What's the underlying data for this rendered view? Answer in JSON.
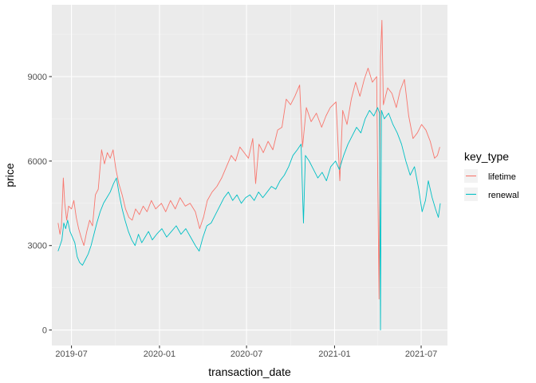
{
  "chart_data": {
    "type": "line",
    "xlabel": "transaction_date",
    "ylabel": "price",
    "x_ticks": [
      "2019-07",
      "2020-01",
      "2020-07",
      "2021-01",
      "2021-07"
    ],
    "y_ticks": [
      "0",
      "3000",
      "6000",
      "9000"
    ],
    "xlim": [
      "2019-05-21",
      "2021-08-25"
    ],
    "ylim": [
      -550,
      11550
    ],
    "grid": true,
    "legend": {
      "title": "key_type",
      "position": "right",
      "entries": [
        "lifetime",
        "renewal"
      ]
    },
    "colors": {
      "lifetime": "#F8766D",
      "renewal": "#00BFC4",
      "panel": "#EBEBEB",
      "grid_major": "#FFFFFF",
      "grid_minor": "#F5F5F5"
    },
    "series": [
      {
        "name": "lifetime",
        "points": [
          [
            "2019-06-03",
            3800
          ],
          [
            "2019-06-07",
            3400
          ],
          [
            "2019-06-10",
            3700
          ],
          [
            "2019-06-14",
            5400
          ],
          [
            "2019-06-17",
            4500
          ],
          [
            "2019-06-21",
            3900
          ],
          [
            "2019-06-25",
            4400
          ],
          [
            "2019-07-01",
            4300
          ],
          [
            "2019-07-06",
            4600
          ],
          [
            "2019-07-11",
            4000
          ],
          [
            "2019-07-16",
            3600
          ],
          [
            "2019-07-21",
            3300
          ],
          [
            "2019-07-27",
            3000
          ],
          [
            "2019-08-02",
            3500
          ],
          [
            "2019-08-08",
            3900
          ],
          [
            "2019-08-14",
            3700
          ],
          [
            "2019-08-20",
            4800
          ],
          [
            "2019-08-26",
            5000
          ],
          [
            "2019-09-02",
            6400
          ],
          [
            "2019-09-08",
            5900
          ],
          [
            "2019-09-14",
            6300
          ],
          [
            "2019-09-20",
            6100
          ],
          [
            "2019-09-26",
            6400
          ],
          [
            "2019-10-02",
            5700
          ],
          [
            "2019-10-08",
            5200
          ],
          [
            "2019-10-15",
            4800
          ],
          [
            "2019-10-22",
            4300
          ],
          [
            "2019-10-29",
            4000
          ],
          [
            "2019-11-05",
            3900
          ],
          [
            "2019-11-12",
            4300
          ],
          [
            "2019-11-20",
            4100
          ],
          [
            "2019-11-28",
            4400
          ],
          [
            "2019-12-06",
            4200
          ],
          [
            "2019-12-15",
            4600
          ],
          [
            "2019-12-24",
            4300
          ],
          [
            "2020-01-05",
            4500
          ],
          [
            "2020-01-14",
            4200
          ],
          [
            "2020-01-24",
            4600
          ],
          [
            "2020-02-03",
            4300
          ],
          [
            "2020-02-13",
            4700
          ],
          [
            "2020-02-24",
            4400
          ],
          [
            "2020-03-05",
            4500
          ],
          [
            "2020-03-16",
            4200
          ],
          [
            "2020-03-25",
            3600
          ],
          [
            "2020-04-02",
            4000
          ],
          [
            "2020-04-10",
            4600
          ],
          [
            "2020-04-20",
            4900
          ],
          [
            "2020-04-30",
            5100
          ],
          [
            "2020-05-10",
            5400
          ],
          [
            "2020-05-20",
            5800
          ],
          [
            "2020-05-30",
            6200
          ],
          [
            "2020-06-08",
            6000
          ],
          [
            "2020-06-17",
            6500
          ],
          [
            "2020-06-26",
            6300
          ],
          [
            "2020-07-05",
            6100
          ],
          [
            "2020-07-14",
            6800
          ],
          [
            "2020-07-20",
            5200
          ],
          [
            "2020-07-27",
            6600
          ],
          [
            "2020-08-05",
            6300
          ],
          [
            "2020-08-15",
            6700
          ],
          [
            "2020-08-25",
            6400
          ],
          [
            "2020-09-04",
            7100
          ],
          [
            "2020-09-13",
            7200
          ],
          [
            "2020-09-22",
            8200
          ],
          [
            "2020-10-01",
            8000
          ],
          [
            "2020-10-10",
            8300
          ],
          [
            "2020-10-20",
            8700
          ],
          [
            "2020-10-26",
            6500
          ],
          [
            "2020-11-03",
            7900
          ],
          [
            "2020-11-13",
            7400
          ],
          [
            "2020-11-24",
            7700
          ],
          [
            "2020-12-05",
            7200
          ],
          [
            "2020-12-14",
            7600
          ],
          [
            "2020-12-23",
            7900
          ],
          [
            "2021-01-04",
            8100
          ],
          [
            "2021-01-12",
            5300
          ],
          [
            "2021-01-18",
            7800
          ],
          [
            "2021-01-27",
            7300
          ],
          [
            "2021-02-05",
            8200
          ],
          [
            "2021-02-14",
            8800
          ],
          [
            "2021-02-23",
            8300
          ],
          [
            "2021-03-04",
            8900
          ],
          [
            "2021-03-12",
            9300
          ],
          [
            "2021-03-21",
            8800
          ],
          [
            "2021-03-30",
            9000
          ],
          [
            "2021-04-04",
            1100
          ],
          [
            "2021-04-07",
            9700
          ],
          [
            "2021-04-10",
            11000
          ],
          [
            "2021-04-13",
            8000
          ],
          [
            "2021-04-22",
            8600
          ],
          [
            "2021-05-01",
            8400
          ],
          [
            "2021-05-10",
            7900
          ],
          [
            "2021-05-18",
            8500
          ],
          [
            "2021-05-27",
            8900
          ],
          [
            "2021-06-05",
            7600
          ],
          [
            "2021-06-14",
            6800
          ],
          [
            "2021-06-23",
            7000
          ],
          [
            "2021-07-02",
            7300
          ],
          [
            "2021-07-11",
            7100
          ],
          [
            "2021-07-20",
            6700
          ],
          [
            "2021-07-29",
            6100
          ],
          [
            "2021-08-04",
            6200
          ],
          [
            "2021-08-09",
            6500
          ]
        ]
      },
      {
        "name": "renewal",
        "points": [
          [
            "2019-06-03",
            2800
          ],
          [
            "2019-06-07",
            3000
          ],
          [
            "2019-06-11",
            3200
          ],
          [
            "2019-06-15",
            3800
          ],
          [
            "2019-06-19",
            3600
          ],
          [
            "2019-06-23",
            3900
          ],
          [
            "2019-06-28",
            3500
          ],
          [
            "2019-07-03",
            3300
          ],
          [
            "2019-07-08",
            3100
          ],
          [
            "2019-07-13",
            2600
          ],
          [
            "2019-07-18",
            2400
          ],
          [
            "2019-07-24",
            2300
          ],
          [
            "2019-07-30",
            2500
          ],
          [
            "2019-08-05",
            2700
          ],
          [
            "2019-08-11",
            3000
          ],
          [
            "2019-08-17",
            3400
          ],
          [
            "2019-08-23",
            3800
          ],
          [
            "2019-08-30",
            4200
          ],
          [
            "2019-09-06",
            4500
          ],
          [
            "2019-09-13",
            4700
          ],
          [
            "2019-09-20",
            4900
          ],
          [
            "2019-09-27",
            5200
          ],
          [
            "2019-10-03",
            5400
          ],
          [
            "2019-10-09",
            4800
          ],
          [
            "2019-10-15",
            4300
          ],
          [
            "2019-10-21",
            3900
          ],
          [
            "2019-10-28",
            3500
          ],
          [
            "2019-11-04",
            3200
          ],
          [
            "2019-11-11",
            3000
          ],
          [
            "2019-11-18",
            3400
          ],
          [
            "2019-11-25",
            3100
          ],
          [
            "2019-12-02",
            3300
          ],
          [
            "2019-12-09",
            3500
          ],
          [
            "2019-12-17",
            3200
          ],
          [
            "2019-12-26",
            3400
          ],
          [
            "2020-01-06",
            3600
          ],
          [
            "2020-01-16",
            3300
          ],
          [
            "2020-01-26",
            3500
          ],
          [
            "2020-02-05",
            3700
          ],
          [
            "2020-02-15",
            3400
          ],
          [
            "2020-02-25",
            3600
          ],
          [
            "2020-03-06",
            3300
          ],
          [
            "2020-03-16",
            3000
          ],
          [
            "2020-03-24",
            2800
          ],
          [
            "2020-04-01",
            3300
          ],
          [
            "2020-04-09",
            3700
          ],
          [
            "2020-04-18",
            3800
          ],
          [
            "2020-04-27",
            4100
          ],
          [
            "2020-05-06",
            4400
          ],
          [
            "2020-05-15",
            4700
          ],
          [
            "2020-05-24",
            4900
          ],
          [
            "2020-06-02",
            4600
          ],
          [
            "2020-06-11",
            4800
          ],
          [
            "2020-06-20",
            4500
          ],
          [
            "2020-06-29",
            4700
          ],
          [
            "2020-07-08",
            4800
          ],
          [
            "2020-07-17",
            4600
          ],
          [
            "2020-07-26",
            4900
          ],
          [
            "2020-08-04",
            4700
          ],
          [
            "2020-08-13",
            4900
          ],
          [
            "2020-08-22",
            5100
          ],
          [
            "2020-08-31",
            5000
          ],
          [
            "2020-09-09",
            5300
          ],
          [
            "2020-09-18",
            5500
          ],
          [
            "2020-09-27",
            5800
          ],
          [
            "2020-10-06",
            6200
          ],
          [
            "2020-10-15",
            6400
          ],
          [
            "2020-10-23",
            6600
          ],
          [
            "2020-10-28",
            3800
          ],
          [
            "2020-11-01",
            6200
          ],
          [
            "2020-11-09",
            6000
          ],
          [
            "2020-11-18",
            5700
          ],
          [
            "2020-11-27",
            5400
          ],
          [
            "2020-12-06",
            5600
          ],
          [
            "2020-12-15",
            5300
          ],
          [
            "2020-12-24",
            5800
          ],
          [
            "2021-01-03",
            6000
          ],
          [
            "2021-01-11",
            5700
          ],
          [
            "2021-01-20",
            6200
          ],
          [
            "2021-01-29",
            6600
          ],
          [
            "2021-02-07",
            6900
          ],
          [
            "2021-02-16",
            7200
          ],
          [
            "2021-02-25",
            7000
          ],
          [
            "2021-03-06",
            7500
          ],
          [
            "2021-03-15",
            7800
          ],
          [
            "2021-03-24",
            7600
          ],
          [
            "2021-04-01",
            7900
          ],
          [
            "2021-04-05",
            7700
          ],
          [
            "2021-04-07",
            0
          ],
          [
            "2021-04-09",
            7800
          ],
          [
            "2021-04-15",
            7500
          ],
          [
            "2021-04-24",
            7700
          ],
          [
            "2021-05-03",
            7300
          ],
          [
            "2021-05-12",
            7000
          ],
          [
            "2021-05-21",
            6600
          ],
          [
            "2021-05-30",
            6000
          ],
          [
            "2021-06-08",
            5500
          ],
          [
            "2021-06-17",
            5800
          ],
          [
            "2021-06-26",
            5000
          ],
          [
            "2021-07-03",
            4200
          ],
          [
            "2021-07-10",
            4600
          ],
          [
            "2021-07-16",
            5300
          ],
          [
            "2021-07-24",
            4700
          ],
          [
            "2021-07-31",
            4300
          ],
          [
            "2021-08-06",
            4000
          ],
          [
            "2021-08-10",
            4500
          ]
        ]
      }
    ]
  }
}
